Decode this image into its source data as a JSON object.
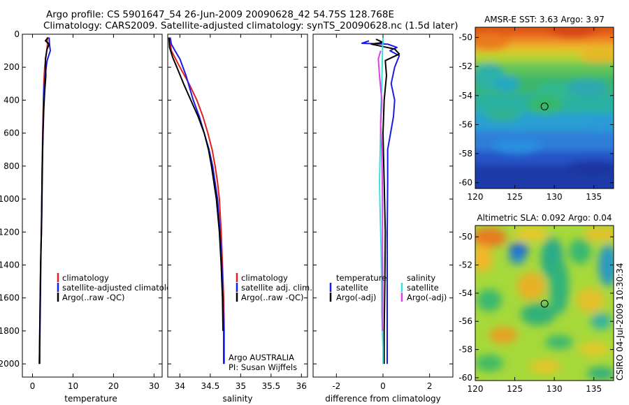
{
  "header": {
    "line1": "Argo profile: CS 5901647_54 26-Jun-2009 20090628_42 54.75S 128.768E",
    "line2": "Climatology: CARS2009. Satellite-adjusted climatology: synTS_20090628.nc (1.5d later)"
  },
  "colors": {
    "climatology": "#e0201a",
    "satellite": "#1a1ae6",
    "argo": "#000000",
    "satellite_diff_salinity": "#33e0e0",
    "argo_diff_salinity": "#e040e0"
  },
  "chart_data": [
    {
      "id": "temperature",
      "type": "line",
      "xlabel": "temperature",
      "ylabel": "",
      "xlim": [
        -2.5,
        32
      ],
      "ylim": [
        2080,
        0
      ],
      "xticks": [
        0,
        10,
        20,
        30
      ],
      "xtick_labels": [
        "0",
        "10",
        "20",
        "30"
      ],
      "yticks": [
        0,
        200,
        400,
        600,
        800,
        1000,
        1200,
        1400,
        1600,
        1800,
        2000
      ],
      "ytick_labels": [
        "0",
        "200",
        "400",
        "600",
        "800",
        "1000",
        "1200",
        "1400",
        "1600",
        "1800",
        "2000"
      ],
      "legend": {
        "entries": [
          "climatology",
          "satellite-adjusted climatology",
          "Argo(..raw -QC)"
        ],
        "placement": "center-right"
      },
      "series": [
        {
          "name": "climatology",
          "color": "#e0201a",
          "points": [
            [
              3.6,
              20
            ],
            [
              3.7,
              60
            ],
            [
              3.4,
              120
            ],
            [
              3.0,
              200
            ],
            [
              2.8,
              300
            ],
            [
              2.7,
              400
            ],
            [
              2.6,
              500
            ],
            [
              2.5,
              600
            ],
            [
              2.4,
              800
            ],
            [
              2.3,
              1000
            ],
            [
              2.2,
              1200
            ],
            [
              2.0,
              1400
            ],
            [
              1.9,
              1600
            ],
            [
              1.8,
              1800
            ],
            [
              1.7,
              2000
            ]
          ]
        },
        {
          "name": "satellite-adjusted climatology",
          "color": "#1a1ae6",
          "points": [
            [
              4.1,
              20
            ],
            [
              4.2,
              60
            ],
            [
              4.4,
              100
            ],
            [
              3.6,
              160
            ],
            [
              3.1,
              250
            ],
            [
              2.8,
              350
            ],
            [
              2.7,
              450
            ],
            [
              2.6,
              550
            ],
            [
              2.5,
              700
            ],
            [
              2.4,
              900
            ],
            [
              2.3,
              1100
            ],
            [
              2.1,
              1300
            ],
            [
              2.0,
              1500
            ],
            [
              1.9,
              1700
            ],
            [
              1.8,
              1900
            ],
            [
              1.8,
              2000
            ]
          ]
        },
        {
          "name": "Argo(..raw -QC)",
          "color": "#000000",
          "points": [
            [
              3.9,
              20
            ],
            [
              3.2,
              40
            ],
            [
              4.1,
              60
            ],
            [
              3.6,
              90
            ],
            [
              3.2,
              150
            ],
            [
              3.3,
              250
            ],
            [
              3.0,
              350
            ],
            [
              2.8,
              450
            ],
            [
              2.6,
              600
            ],
            [
              2.4,
              800
            ],
            [
              2.3,
              1000
            ],
            [
              2.2,
              1200
            ],
            [
              2.0,
              1400
            ],
            [
              1.9,
              1600
            ],
            [
              1.8,
              1800
            ],
            [
              1.7,
              2000
            ]
          ]
        }
      ]
    },
    {
      "id": "salinity",
      "type": "line",
      "xlabel": "salinity",
      "ylabel": "",
      "xlim": [
        33.8,
        36.1
      ],
      "ylim": [
        2080,
        0
      ],
      "xticks": [
        34,
        34.5,
        35,
        35.5,
        36
      ],
      "xtick_labels": [
        "34",
        "34.5",
        "35",
        "35.5",
        "36"
      ],
      "legend": {
        "entries": [
          "climatology",
          "satellite adj. clim.",
          "Argo(..raw -QC)"
        ],
        "placement": "center-right"
      },
      "annotations": [
        "Argo AUSTRALIA",
        "PI: Susan Wijffels"
      ],
      "series": [
        {
          "name": "climatology",
          "color": "#e0201a",
          "points": [
            [
              33.83,
              20
            ],
            [
              33.86,
              100
            ],
            [
              34.0,
              200
            ],
            [
              34.15,
              300
            ],
            [
              34.28,
              400
            ],
            [
              34.38,
              500
            ],
            [
              34.46,
              600
            ],
            [
              34.53,
              700
            ],
            [
              34.58,
              800
            ],
            [
              34.62,
              900
            ],
            [
              34.65,
              1000
            ],
            [
              34.68,
              1200
            ],
            [
              34.7,
              1400
            ],
            [
              34.72,
              1600
            ],
            [
              34.73,
              1800
            ],
            [
              34.73,
              2000
            ]
          ]
        },
        {
          "name": "satellite adj. clim.",
          "color": "#1a1ae6",
          "points": [
            [
              33.84,
              20
            ],
            [
              33.86,
              60
            ],
            [
              33.92,
              100
            ],
            [
              34.0,
              150
            ],
            [
              34.1,
              250
            ],
            [
              34.22,
              400
            ],
            [
              34.32,
              500
            ],
            [
              34.4,
              600
            ],
            [
              34.48,
              700
            ],
            [
              34.54,
              800
            ],
            [
              34.58,
              900
            ],
            [
              34.62,
              1000
            ],
            [
              34.66,
              1200
            ],
            [
              34.69,
              1400
            ],
            [
              34.71,
              1600
            ],
            [
              34.72,
              1800
            ],
            [
              34.72,
              2000
            ]
          ]
        },
        {
          "name": "Argo(..raw -QC)",
          "color": "#000000",
          "points": [
            [
              33.82,
              20
            ],
            [
              33.83,
              80
            ],
            [
              33.88,
              140
            ],
            [
              33.95,
              200
            ],
            [
              34.06,
              300
            ],
            [
              34.18,
              400
            ],
            [
              34.3,
              500
            ],
            [
              34.4,
              600
            ],
            [
              34.47,
              700
            ],
            [
              34.52,
              800
            ],
            [
              34.56,
              900
            ],
            [
              34.6,
              1000
            ],
            [
              34.65,
              1200
            ],
            [
              34.68,
              1400
            ],
            [
              34.7,
              1600
            ],
            [
              34.71,
              1800
            ]
          ]
        }
      ]
    },
    {
      "id": "difference",
      "type": "line",
      "xlabel": "difference from climatology",
      "ylabel": "",
      "xlim": [
        -3,
        3
      ],
      "ylim": [
        2080,
        0
      ],
      "xticks": [
        -2,
        0,
        2
      ],
      "xtick_labels": [
        "-2",
        "0",
        "2"
      ],
      "legend": {
        "groups": [
          {
            "title": "temperature",
            "entries": [
              "satellite",
              "Argo(-adj)"
            ]
          },
          {
            "title": "salinity",
            "entries": [
              "satellite",
              "Argo(-adj)"
            ]
          }
        ],
        "placement": "center-right"
      },
      "series": [
        {
          "name": "temperature satellite",
          "color": "#1a1ae6",
          "points": [
            [
              -0.6,
              40
            ],
            [
              -0.9,
              55
            ],
            [
              0.2,
              60
            ],
            [
              0.6,
              80
            ],
            [
              0.3,
              100
            ],
            [
              0.7,
              130
            ],
            [
              0.5,
              200
            ],
            [
              0.35,
              300
            ],
            [
              0.5,
              400
            ],
            [
              0.45,
              500
            ],
            [
              0.2,
              700
            ],
            [
              0.2,
              900
            ],
            [
              0.18,
              1200
            ],
            [
              0.18,
              1500
            ],
            [
              0.18,
              1800
            ],
            [
              0.18,
              2000
            ]
          ]
        },
        {
          "name": "temperature Argo(-adj)",
          "color": "#000000",
          "points": [
            [
              -0.3,
              30
            ],
            [
              0.0,
              50
            ],
            [
              -0.5,
              60
            ],
            [
              0.5,
              90
            ],
            [
              0.7,
              120
            ],
            [
              0.1,
              160
            ],
            [
              0.15,
              250
            ],
            [
              0.05,
              400
            ],
            [
              0.0,
              600
            ],
            [
              0.05,
              900
            ],
            [
              0.1,
              1200
            ],
            [
              0.08,
              1500
            ],
            [
              0.05,
              1800
            ],
            [
              0.05,
              2000
            ]
          ]
        },
        {
          "name": "salinity satellite",
          "color": "#33e0e0",
          "points": [
            [
              0.0,
              20
            ],
            [
              -0.02,
              100
            ],
            [
              -0.05,
              300
            ],
            [
              -0.1,
              500
            ],
            [
              -0.12,
              700
            ],
            [
              -0.15,
              900
            ],
            [
              -0.12,
              1100
            ],
            [
              -0.08,
              1300
            ],
            [
              -0.06,
              1500
            ],
            [
              -0.05,
              1700
            ],
            [
              0.0,
              1900
            ],
            [
              0.0,
              2000
            ]
          ]
        },
        {
          "name": "salinity Argo(-adj)",
          "color": "#e040e0",
          "points": [
            [
              -0.1,
              100
            ],
            [
              -0.2,
              150
            ],
            [
              -0.15,
              250
            ],
            [
              -0.05,
              400
            ],
            [
              -0.1,
              550
            ],
            [
              -0.05,
              700
            ],
            [
              -0.03,
              900
            ],
            [
              -0.02,
              1100
            ],
            [
              -0.02,
              1300
            ],
            [
              -0.01,
              1500
            ],
            [
              -0.02,
              1800
            ]
          ]
        }
      ]
    },
    {
      "id": "sst_map",
      "type": "heatmap",
      "title": "AMSR-E SST: 3.63 Argo: 3.97",
      "xlim": [
        120,
        137.5
      ],
      "ylim": [
        -60.4,
        -49.3
      ],
      "xticks": [
        120,
        125,
        130,
        135
      ],
      "xtick_labels": [
        "120",
        "125",
        "130",
        "135"
      ],
      "yticks": [
        -50,
        -52,
        -54,
        -56,
        -58,
        -60
      ],
      "ytick_labels": [
        "-50",
        "-52",
        "-54",
        "-56",
        "-58",
        "-60"
      ],
      "marker": {
        "lon": 128.768,
        "lat": -54.75
      }
    },
    {
      "id": "sla_map",
      "type": "heatmap",
      "title": "Altimetric SLA: 0.092 Argo: 0.04",
      "xlim": [
        120,
        137.5
      ],
      "ylim": [
        -60.2,
        -49.2
      ],
      "xticks": [
        120,
        125,
        130,
        135
      ],
      "xtick_labels": [
        "120",
        "125",
        "130",
        "135"
      ],
      "yticks": [
        -50,
        -52,
        -54,
        -56,
        -58,
        -60
      ],
      "ytick_labels": [
        "-50",
        "-52",
        "-54",
        "-56",
        "-58",
        "-60"
      ],
      "marker": {
        "lon": 128.768,
        "lat": -54.75
      }
    }
  ],
  "side_label": "CSIRO 04-Jul-2009 10:30:34"
}
